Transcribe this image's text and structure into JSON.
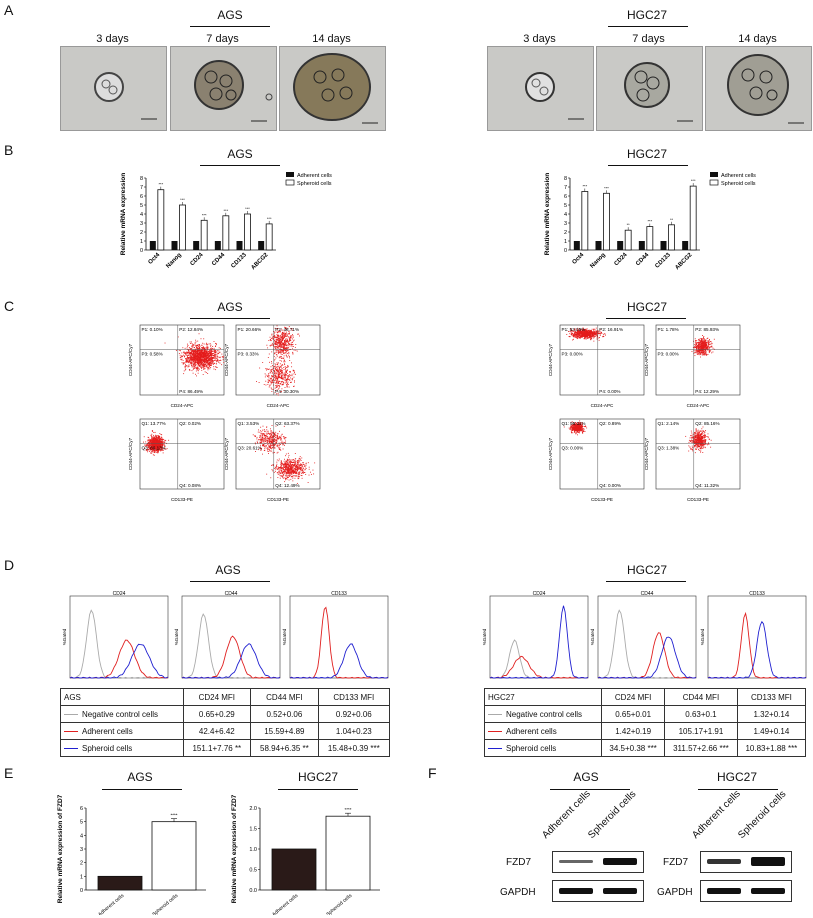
{
  "panels": {
    "A": "A",
    "B": "B",
    "C": "C",
    "D": "D",
    "E": "E",
    "F": "F"
  },
  "groups": {
    "ags": "AGS",
    "hgc": "HGC27"
  },
  "panelA": {
    "days": [
      "3 days",
      "7 days",
      "14 days"
    ]
  },
  "panelB": {
    "ylabel": "Relative mRNA expression",
    "legend": [
      "Adherent cells",
      "Spheroid cells"
    ],
    "chart_data": [
      {
        "type": "bar",
        "title": "AGS",
        "categories": [
          "Oct4",
          "Nanog",
          "CD24",
          "CD44",
          "CD133",
          "ABCG2"
        ],
        "ylim": [
          0,
          8
        ],
        "yticks": [
          "0",
          "1",
          "2",
          "3",
          "4",
          "5",
          "6",
          "7",
          "8"
        ],
        "series": [
          {
            "name": "Adherent cells",
            "values": [
              1,
              1,
              1,
              1,
              1,
              1
            ]
          },
          {
            "name": "Spheroid cells",
            "values": [
              6.7,
              5.0,
              3.3,
              3.8,
              4.0,
              2.9
            ]
          }
        ],
        "sig": [
          "***",
          "***",
          "***",
          "***",
          "***",
          "***"
        ]
      },
      {
        "type": "bar",
        "title": "HGC27",
        "categories": [
          "Oct4",
          "Nanog",
          "CD24",
          "CD44",
          "CD133",
          "ABCG2"
        ],
        "ylim": [
          0,
          8
        ],
        "yticks": [
          "0",
          "1",
          "2",
          "3",
          "4",
          "5",
          "6",
          "7",
          "8"
        ],
        "series": [
          {
            "name": "Adherent cells",
            "values": [
              1,
              1,
              1,
              1,
              1,
              1
            ]
          },
          {
            "name": "Spheroid cells",
            "values": [
              6.5,
              6.3,
              2.2,
              2.6,
              2.8,
              7.1
            ]
          }
        ],
        "sig": [
          "***",
          "***",
          "**",
          "***",
          "**",
          "***"
        ]
      }
    ]
  },
  "panelC": {
    "plots": [
      {
        "yl": "CD44-APC/Cy7",
        "xl": "CD24-APC",
        "q": [
          "P1: 0.10%",
          "P2: 12.84%",
          "P3: 0.58%",
          "P4: 86.49%"
        ]
      },
      {
        "yl": "CD44-APC/Cy7",
        "xl": "CD24-APC",
        "q": [
          "P1: 20.66%",
          "P2: 48.71%",
          "P3: 0.33%",
          "P4: 30.30%"
        ]
      },
      {
        "yl": "CD44-APC/Cy7",
        "xl": "CD133-PE",
        "q": [
          "Q1: 13.77%",
          "Q2: 0.02%",
          "Q3: 86.13%",
          "Q4: 0.08%"
        ]
      },
      {
        "yl": "CD44-APC/Cy7",
        "xl": "CD133-PE",
        "q": [
          "Q1: 3.53%",
          "Q2: 63.37%",
          "Q3: 20.61%",
          "Q4: 12.49%"
        ]
      },
      {
        "yl": "CD44-APC/Cy7",
        "xl": "CD24-APC",
        "q": [
          "P1: 83.09%",
          "P2: 16.91%",
          "P3: 0.00%",
          "P4: 0.00%"
        ]
      },
      {
        "yl": "CD44-APC/Cy7",
        "xl": "CD24-APC",
        "q": [
          "P1: 1.78%",
          "P2: 85.93%",
          "P3: 0.00%",
          "P4: 12.29%"
        ]
      },
      {
        "yl": "CD44-APC/Cy7",
        "xl": "CD133-PE",
        "q": [
          "Q1: 99.11%",
          "Q2: 0.89%",
          "Q3: 0.00%",
          "Q4: 0.00%"
        ]
      },
      {
        "yl": "CD44-APC/Cy7",
        "xl": "CD133-PE",
        "q": [
          "Q1: 2.14%",
          "Q2: 85.16%",
          "Q3: 1.38%",
          "Q4: 11.32%"
        ]
      }
    ]
  },
  "panelD": {
    "hist_titles": [
      "CD24",
      "CD44",
      "CD133"
    ],
    "ylab": "%Gated",
    "tables": [
      {
        "head": [
          "AGS",
          "CD24 MFI",
          "CD44 MFI",
          "CD133 MFI"
        ],
        "rows": [
          [
            "Negative control cells",
            "0.65+0.29",
            "0.52+0.06",
            "0.92+0.06"
          ],
          [
            "Adherent cells",
            "42.4+6.42",
            "15.59+4.89",
            "1.04+0.23"
          ],
          [
            "Spheroid cells",
            "151.1+7.76 **",
            "58.94+6.35 **",
            "15.48+0.39 ***"
          ]
        ]
      },
      {
        "head": [
          "HGC27",
          "CD24 MFI",
          "CD44 MFI",
          "CD133 MFI"
        ],
        "rows": [
          [
            "Negative control cells",
            "0.65+0.01",
            "0.63+0.1",
            "1.32+0.14"
          ],
          [
            "Adherent cells",
            "1.42+0.19",
            "105.17+1.91",
            "1.49+0.14"
          ],
          [
            "Spheroid cells",
            "34.5+0.38 ***",
            "311.57+2.66 ***",
            "10.83+1.88 ***"
          ]
        ]
      }
    ]
  },
  "panelE": {
    "ylabel": "Relative mRNA expression of FZD7",
    "chart_data": [
      {
        "type": "bar",
        "title": "AGS",
        "categories": [
          "Adherent cells",
          "Spheroid cells"
        ],
        "values": [
          1,
          5.0
        ],
        "ylim": [
          0,
          6
        ],
        "yticks": [
          "0",
          "1",
          "2",
          "3",
          "4",
          "5",
          "6"
        ],
        "sig": "****"
      },
      {
        "type": "bar",
        "title": "HGC27",
        "categories": [
          "Adherent cells",
          "Spheroid cells"
        ],
        "values": [
          1,
          1.8
        ],
        "ylim": [
          0,
          2.0
        ],
        "yticks": [
          "0.0",
          "0.5",
          "1.0",
          "1.5",
          "2.0"
        ],
        "sig": "****"
      }
    ]
  },
  "panelF": {
    "lanes": [
      "Adherent cells",
      "Spheroid cells"
    ],
    "proteins": [
      "FZD7",
      "GAPDH"
    ]
  }
}
